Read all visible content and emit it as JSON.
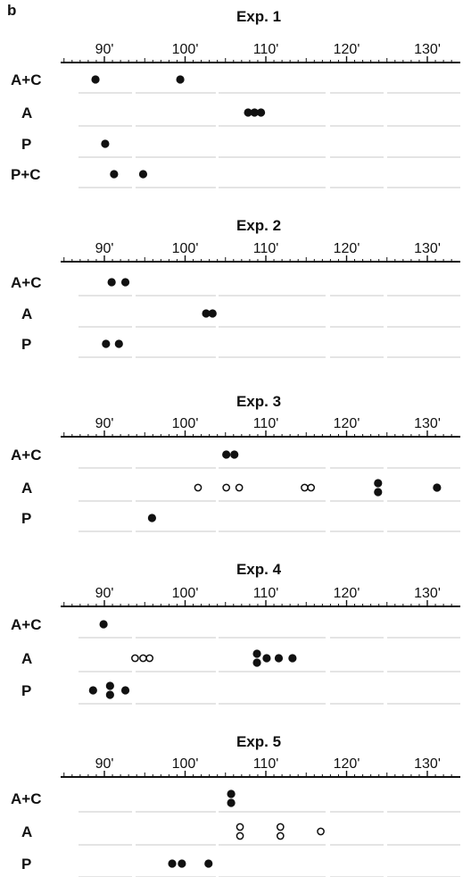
{
  "panel_label": "b",
  "chart_data": [
    {
      "type": "scatter",
      "title": "Exp. 1",
      "x_ticks": [
        "90'",
        "100'",
        "110'",
        "120'",
        "130'"
      ],
      "tick_values": [
        90,
        100,
        110,
        120,
        130
      ],
      "xlim": [
        84,
        135
      ],
      "rows": [
        {
          "label": "A+C",
          "points": [
            {
              "x": 88.9,
              "filled": true
            },
            {
              "x": 99.4,
              "filled": true
            }
          ]
        },
        {
          "label": "A",
          "points": [
            {
              "x": 107.8,
              "filled": true
            },
            {
              "x": 108.6,
              "filled": true
            },
            {
              "x": 109.4,
              "filled": true
            }
          ]
        },
        {
          "label": "P",
          "points": [
            {
              "x": 90.1,
              "filled": true
            }
          ]
        },
        {
          "label": "P+C",
          "points": [
            {
              "x": 91.2,
              "filled": true
            },
            {
              "x": 94.8,
              "filled": true
            }
          ]
        }
      ]
    },
    {
      "type": "scatter",
      "title": "Exp. 2",
      "x_ticks": [
        "90'",
        "100'",
        "110'",
        "120'",
        "130'"
      ],
      "tick_values": [
        90,
        100,
        110,
        120,
        130
      ],
      "xlim": [
        84,
        135
      ],
      "rows": [
        {
          "label": "A+C",
          "points": [
            {
              "x": 90.9,
              "filled": true
            },
            {
              "x": 92.6,
              "filled": true
            }
          ]
        },
        {
          "label": "A",
          "points": [
            {
              "x": 102.6,
              "filled": true
            },
            {
              "x": 103.4,
              "filled": true
            }
          ]
        },
        {
          "label": "P",
          "points": [
            {
              "x": 90.2,
              "filled": true
            },
            {
              "x": 91.8,
              "filled": true
            }
          ]
        }
      ]
    },
    {
      "type": "scatter",
      "title": "Exp. 3",
      "x_ticks": [
        "90'",
        "100'",
        "110'",
        "120'",
        "130'"
      ],
      "tick_values": [
        90,
        100,
        110,
        120,
        130
      ],
      "xlim": [
        84,
        135
      ],
      "rows": [
        {
          "label": "A+C",
          "points": [
            {
              "x": 105.1,
              "filled": true
            },
            {
              "x": 106.1,
              "filled": true
            }
          ]
        },
        {
          "label": "A",
          "points": [
            {
              "x": 101.6,
              "filled": false
            },
            {
              "x": 105.1,
              "filled": false
            },
            {
              "x": 106.7,
              "filled": false
            },
            {
              "x": 114.8,
              "filled": false
            },
            {
              "x": 115.6,
              "filled": false
            },
            {
              "x": 123.9,
              "filled": true
            },
            {
              "x": 123.9,
              "filled": true
            },
            {
              "x": 131.2,
              "filled": true
            }
          ]
        },
        {
          "label": "P",
          "points": [
            {
              "x": 95.9,
              "filled": true
            }
          ]
        }
      ]
    },
    {
      "type": "scatter",
      "title": "Exp. 4",
      "x_ticks": [
        "90'",
        "100'",
        "110'",
        "120'",
        "130'"
      ],
      "tick_values": [
        90,
        100,
        110,
        120,
        130
      ],
      "xlim": [
        84,
        135
      ],
      "rows": [
        {
          "label": "A+C",
          "points": [
            {
              "x": 89.9,
              "filled": true
            }
          ]
        },
        {
          "label": "A",
          "points": [
            {
              "x": 93.8,
              "filled": false
            },
            {
              "x": 94.8,
              "filled": false
            },
            {
              "x": 95.6,
              "filled": false
            },
            {
              "x": 108.9,
              "filled": true
            },
            {
              "x": 108.9,
              "filled": true
            },
            {
              "x": 110.1,
              "filled": true
            },
            {
              "x": 111.6,
              "filled": true
            },
            {
              "x": 113.3,
              "filled": true
            }
          ]
        },
        {
          "label": "P",
          "points": [
            {
              "x": 88.6,
              "filled": true
            },
            {
              "x": 90.7,
              "filled": true
            },
            {
              "x": 90.7,
              "filled": true
            },
            {
              "x": 92.6,
              "filled": true
            }
          ]
        }
      ]
    },
    {
      "type": "scatter",
      "title": "Exp. 5",
      "x_ticks": [
        "90'",
        "100'",
        "110'",
        "120'",
        "130'"
      ],
      "tick_values": [
        90,
        100,
        110,
        120,
        130
      ],
      "xlim": [
        84,
        135
      ],
      "rows": [
        {
          "label": "A+C",
          "points": [
            {
              "x": 105.7,
              "filled": true
            },
            {
              "x": 105.7,
              "filled": true
            }
          ]
        },
        {
          "label": "A",
          "points": [
            {
              "x": 106.8,
              "filled": false
            },
            {
              "x": 106.8,
              "filled": false
            },
            {
              "x": 111.8,
              "filled": false
            },
            {
              "x": 111.8,
              "filled": false
            },
            {
              "x": 116.8,
              "filled": false
            }
          ]
        },
        {
          "label": "P",
          "points": [
            {
              "x": 98.4,
              "filled": true
            },
            {
              "x": 99.6,
              "filled": true
            },
            {
              "x": 102.9,
              "filled": true
            }
          ]
        }
      ]
    }
  ]
}
